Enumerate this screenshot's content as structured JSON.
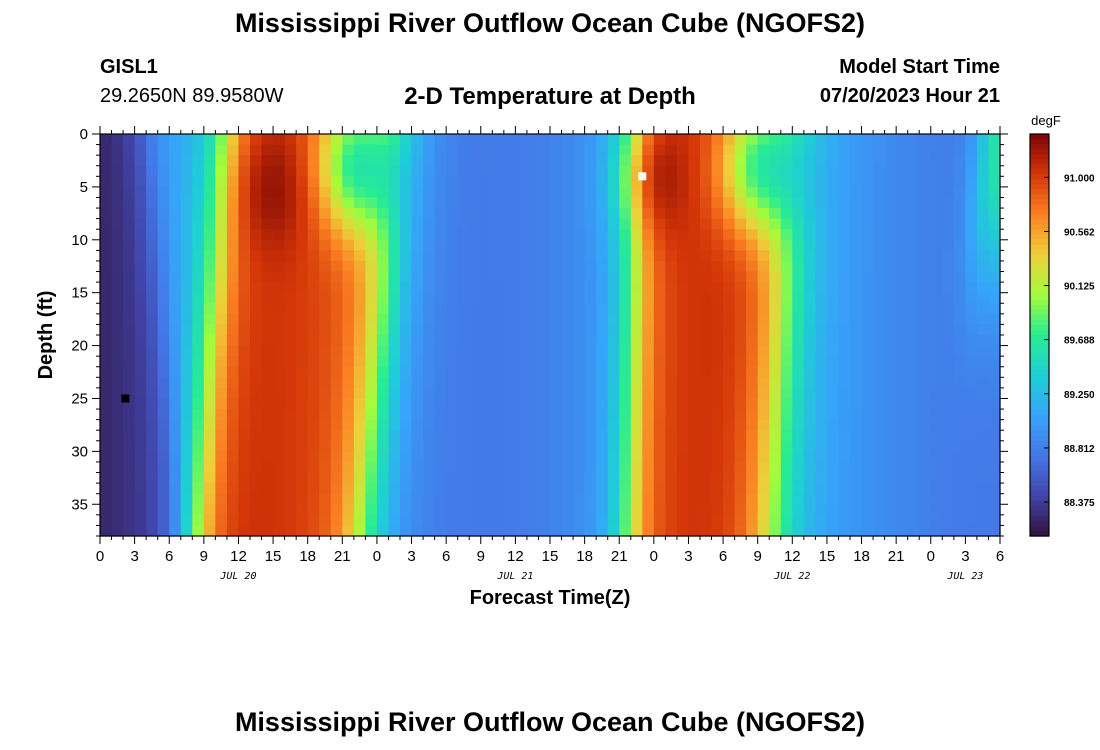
{
  "header": {
    "title": "Mississippi River Outflow Ocean Cube (NGOFS2)",
    "station_id": "GISL1",
    "station_coords": "29.2650N  89.9580W",
    "subtitle": "2-D Temperature at Depth",
    "start_label": "Model Start Time",
    "start_value": "07/20/2023 Hour 21"
  },
  "footer": {
    "title": "Mississippi River Outflow Ocean Cube (NGOFS2)"
  },
  "chart_data": {
    "type": "heatmap",
    "title": "2-D Temperature at Depth",
    "xlabel": "Forecast Time(Z)",
    "ylabel": "Depth (ft)",
    "x_start_hour": 0,
    "x_end_hour": 78,
    "x_tick_labels": [
      "0",
      "3",
      "6",
      "9",
      "12",
      "15",
      "18",
      "21",
      "0",
      "3",
      "6",
      "9",
      "12",
      "15",
      "18",
      "21",
      "0",
      "3",
      "6",
      "9",
      "12",
      "15",
      "18",
      "21",
      "0",
      "3",
      "6"
    ],
    "x_date_labels": [
      {
        "label": "JUL 20",
        "hour": 12
      },
      {
        "label": "JUL 21",
        "hour": 36
      },
      {
        "label": "JUL 22",
        "hour": 60
      },
      {
        "label": "JUL 23",
        "hour": 75
      }
    ],
    "ylim": [
      0,
      38
    ],
    "y_ticks": [
      0,
      5,
      10,
      15,
      20,
      25,
      30,
      35
    ],
    "colorbar": {
      "unit": "degF",
      "min": 88.1,
      "max": 91.35,
      "tick_values": [
        91.0,
        90.562,
        90.125,
        89.688,
        89.25,
        88.812,
        88.375
      ],
      "tick_labels": [
        "91.000",
        "90.562",
        "90.125",
        "89.688",
        "89.250",
        "88.812",
        "88.375"
      ]
    },
    "markers": [
      {
        "name": "maximum",
        "hour": 47,
        "depth": 4,
        "color": "#ffffff"
      },
      {
        "name": "minimum",
        "hour": 2.2,
        "depth": 25,
        "color": "#000000"
      }
    ]
  }
}
